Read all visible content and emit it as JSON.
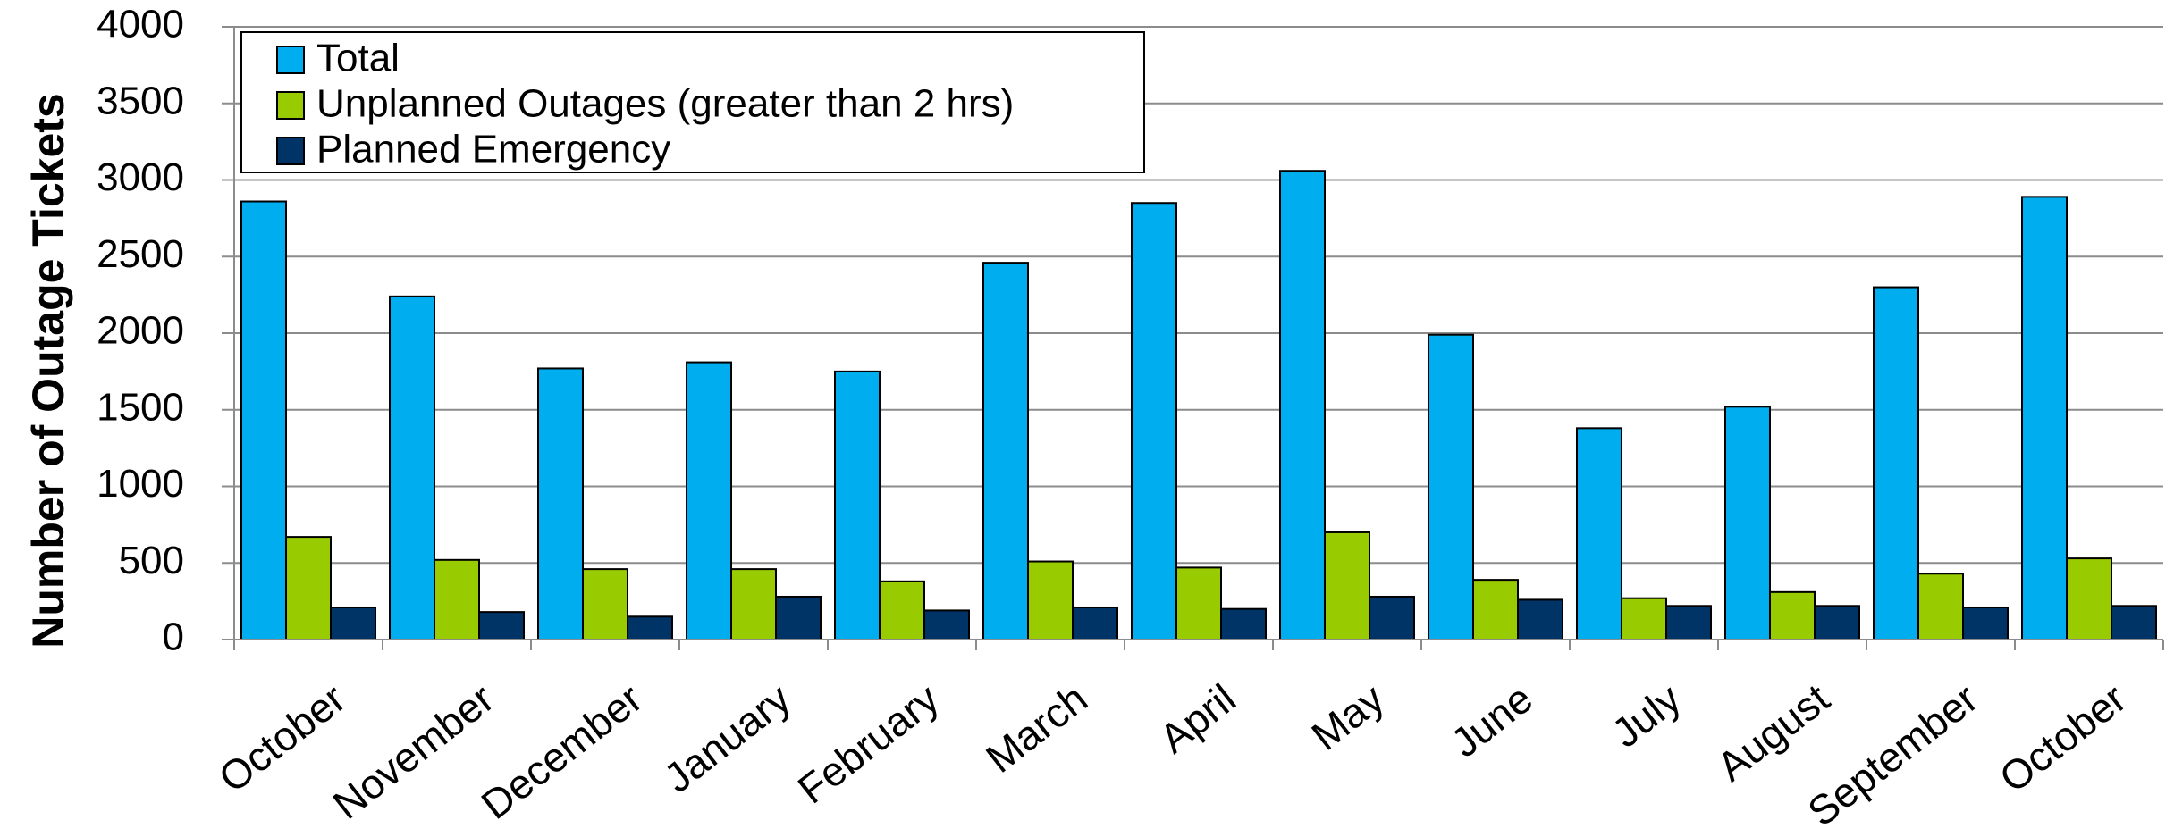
{
  "chart_data": {
    "type": "bar",
    "title": "",
    "xlabel": "",
    "ylabel": "Number of Outage Tickets",
    "ylim": [
      0,
      4000
    ],
    "yticks": [
      0,
      500,
      1000,
      1500,
      2000,
      2500,
      3000,
      3500,
      4000
    ],
    "grid": true,
    "legend_position": "top-left",
    "categories": [
      "October",
      "November",
      "December",
      "January",
      "February",
      "March",
      "April",
      "May",
      "June",
      "July",
      "August",
      "September",
      "October"
    ],
    "series": [
      {
        "name": "Total",
        "color": "#00aeef",
        "values": [
          2860,
          2240,
          1770,
          1810,
          1750,
          2460,
          2850,
          3060,
          1990,
          1380,
          1520,
          2300,
          2890
        ]
      },
      {
        "name": "Unplanned Outages (greater than 2 hrs)",
        "color": "#99cc00",
        "values": [
          670,
          520,
          460,
          460,
          380,
          510,
          470,
          700,
          390,
          270,
          310,
          430,
          530
        ]
      },
      {
        "name": "Planned Emergency",
        "color": "#003366",
        "values": [
          210,
          180,
          150,
          280,
          190,
          210,
          200,
          280,
          260,
          220,
          220,
          210,
          220
        ]
      }
    ]
  }
}
